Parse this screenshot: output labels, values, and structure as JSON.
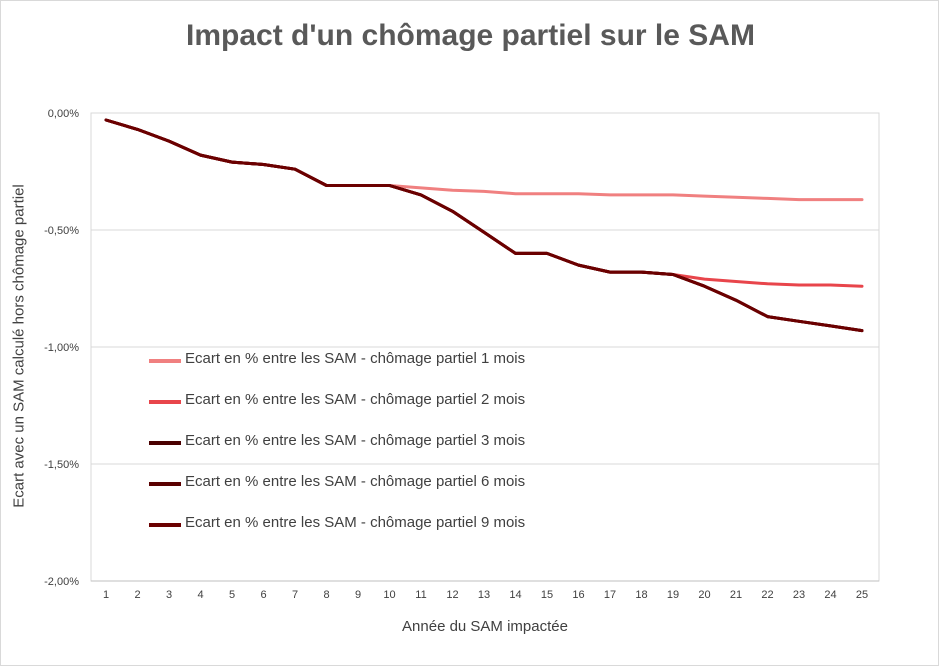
{
  "chart_data": {
    "type": "line",
    "title": "Impact d'un chômage partiel sur le SAM",
    "xlabel": "Année du SAM impactée",
    "ylabel": "Ecart avec un SAM calculé hors chômage partiel",
    "ylim": [
      -2.0,
      0.0
    ],
    "y_unit": "%",
    "yticks": [
      "0,00%",
      "-0,50%",
      "-1,00%",
      "-1,50%",
      "-2,00%"
    ],
    "ytick_values": [
      0,
      -0.5,
      -1.0,
      -1.5,
      -2.0
    ],
    "categories": [
      "1",
      "2",
      "3",
      "4",
      "5",
      "6",
      "7",
      "8",
      "9",
      "10",
      "11",
      "12",
      "13",
      "14",
      "15",
      "16",
      "17",
      "18",
      "19",
      "20",
      "21",
      "22",
      "23",
      "24",
      "25"
    ],
    "grid": true,
    "legend_position": "inside-left",
    "series": [
      {
        "name": "Ecart en % entre les SAM - chômage partiel 1 mois",
        "color": "#f08080",
        "values": [
          -0.03,
          -0.07,
          -0.12,
          -0.18,
          -0.21,
          -0.22,
          -0.24,
          -0.31,
          -0.31,
          -0.31,
          -0.32,
          -0.33,
          -0.335,
          -0.345,
          -0.345,
          -0.345,
          -0.35,
          -0.35,
          -0.35,
          -0.355,
          -0.36,
          -0.365,
          -0.37,
          -0.37,
          -0.37
        ]
      },
      {
        "name": "Ecart en % entre les SAM - chômage partiel 2 mois",
        "color": "#e8454b",
        "values": [
          -0.03,
          -0.07,
          -0.12,
          -0.18,
          -0.21,
          -0.22,
          -0.24,
          -0.31,
          -0.31,
          -0.31,
          -0.35,
          -0.42,
          -0.51,
          -0.6,
          -0.6,
          -0.65,
          -0.68,
          -0.68,
          -0.69,
          -0.71,
          -0.72,
          -0.73,
          -0.735,
          -0.735,
          -0.74
        ]
      },
      {
        "name": "Ecart en % entre les SAM - chômage partiel 3 mois",
        "color": "#4a0000",
        "values": [
          -0.03,
          -0.07,
          -0.12,
          -0.18,
          -0.21,
          -0.22,
          -0.24,
          -0.31,
          -0.31,
          -0.31,
          -0.35,
          -0.42,
          -0.51,
          -0.6,
          -0.6,
          -0.65,
          -0.68,
          -0.68,
          -0.69,
          -0.74,
          -0.8,
          -0.87,
          -0.89,
          -0.91,
          -0.93
        ]
      },
      {
        "name": "Ecart en % entre les SAM - chômage partiel 6 mois",
        "color": "#5a0000",
        "values": [
          -0.03,
          -0.07,
          -0.12,
          -0.18,
          -0.21,
          -0.22,
          -0.24,
          -0.31,
          -0.31,
          -0.31,
          -0.35,
          -0.42,
          -0.51,
          -0.6,
          -0.6,
          -0.65,
          -0.68,
          -0.68,
          -0.69,
          -0.74,
          -0.8,
          -0.87,
          -0.89,
          -0.91,
          -0.93
        ]
      },
      {
        "name": "Ecart en % entre les SAM - chômage partiel 9 mois",
        "color": "#6b0000",
        "values": [
          -0.03,
          -0.07,
          -0.12,
          -0.18,
          -0.21,
          -0.22,
          -0.24,
          -0.31,
          -0.31,
          -0.31,
          -0.35,
          -0.42,
          -0.51,
          -0.6,
          -0.6,
          -0.65,
          -0.68,
          -0.68,
          -0.69,
          -0.74,
          -0.8,
          -0.87,
          -0.89,
          -0.91,
          -0.93
        ]
      }
    ]
  }
}
